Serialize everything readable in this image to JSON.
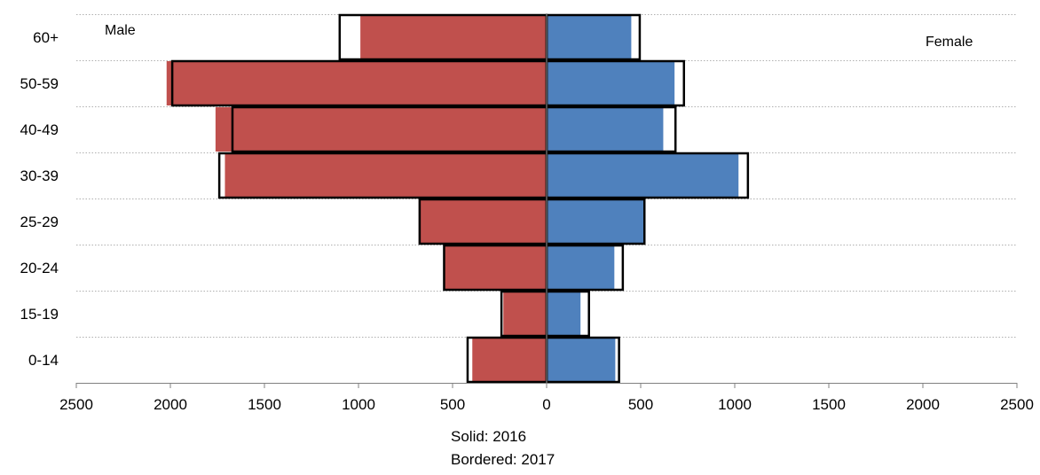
{
  "chart_data": {
    "type": "bar",
    "orientation": "horizontal",
    "subtype": "population-pyramid",
    "categories": [
      "60+",
      "50-59",
      "40-49",
      "30-39",
      "25-29",
      "20-24",
      "15-19",
      "0-14"
    ],
    "series": [
      {
        "name": "Male",
        "year": "2016",
        "style": "solid",
        "color": "#c0504d",
        "values": [
          990,
          2020,
          1760,
          1710,
          680,
          545,
          230,
          395
        ]
      },
      {
        "name": "Female",
        "year": "2016",
        "style": "solid",
        "color": "#4f81bd",
        "values": [
          450,
          680,
          620,
          1020,
          520,
          360,
          180,
          365
        ]
      },
      {
        "name": "Male",
        "year": "2017",
        "style": "bordered",
        "values": [
          1100,
          1990,
          1670,
          1740,
          675,
          545,
          240,
          420
        ]
      },
      {
        "name": "Female",
        "year": "2017",
        "style": "bordered",
        "values": [
          495,
          730,
          685,
          1070,
          520,
          405,
          225,
          385
        ]
      }
    ],
    "xlim": [
      -2500,
      2500
    ],
    "x_ticks": [
      -2500,
      -2000,
      -1500,
      -1000,
      -500,
      0,
      500,
      1000,
      1500,
      2000,
      2500
    ],
    "x_tick_labels": [
      "2500",
      "2000",
      "1500",
      "1000",
      "500",
      "0",
      "500",
      "1000",
      "1500",
      "2000",
      "2500"
    ],
    "grid": "horizontal-dotted",
    "left_label": "Male",
    "right_label": "Female",
    "note_lines": [
      "Solid: 2016",
      "Bordered: 2017"
    ]
  }
}
